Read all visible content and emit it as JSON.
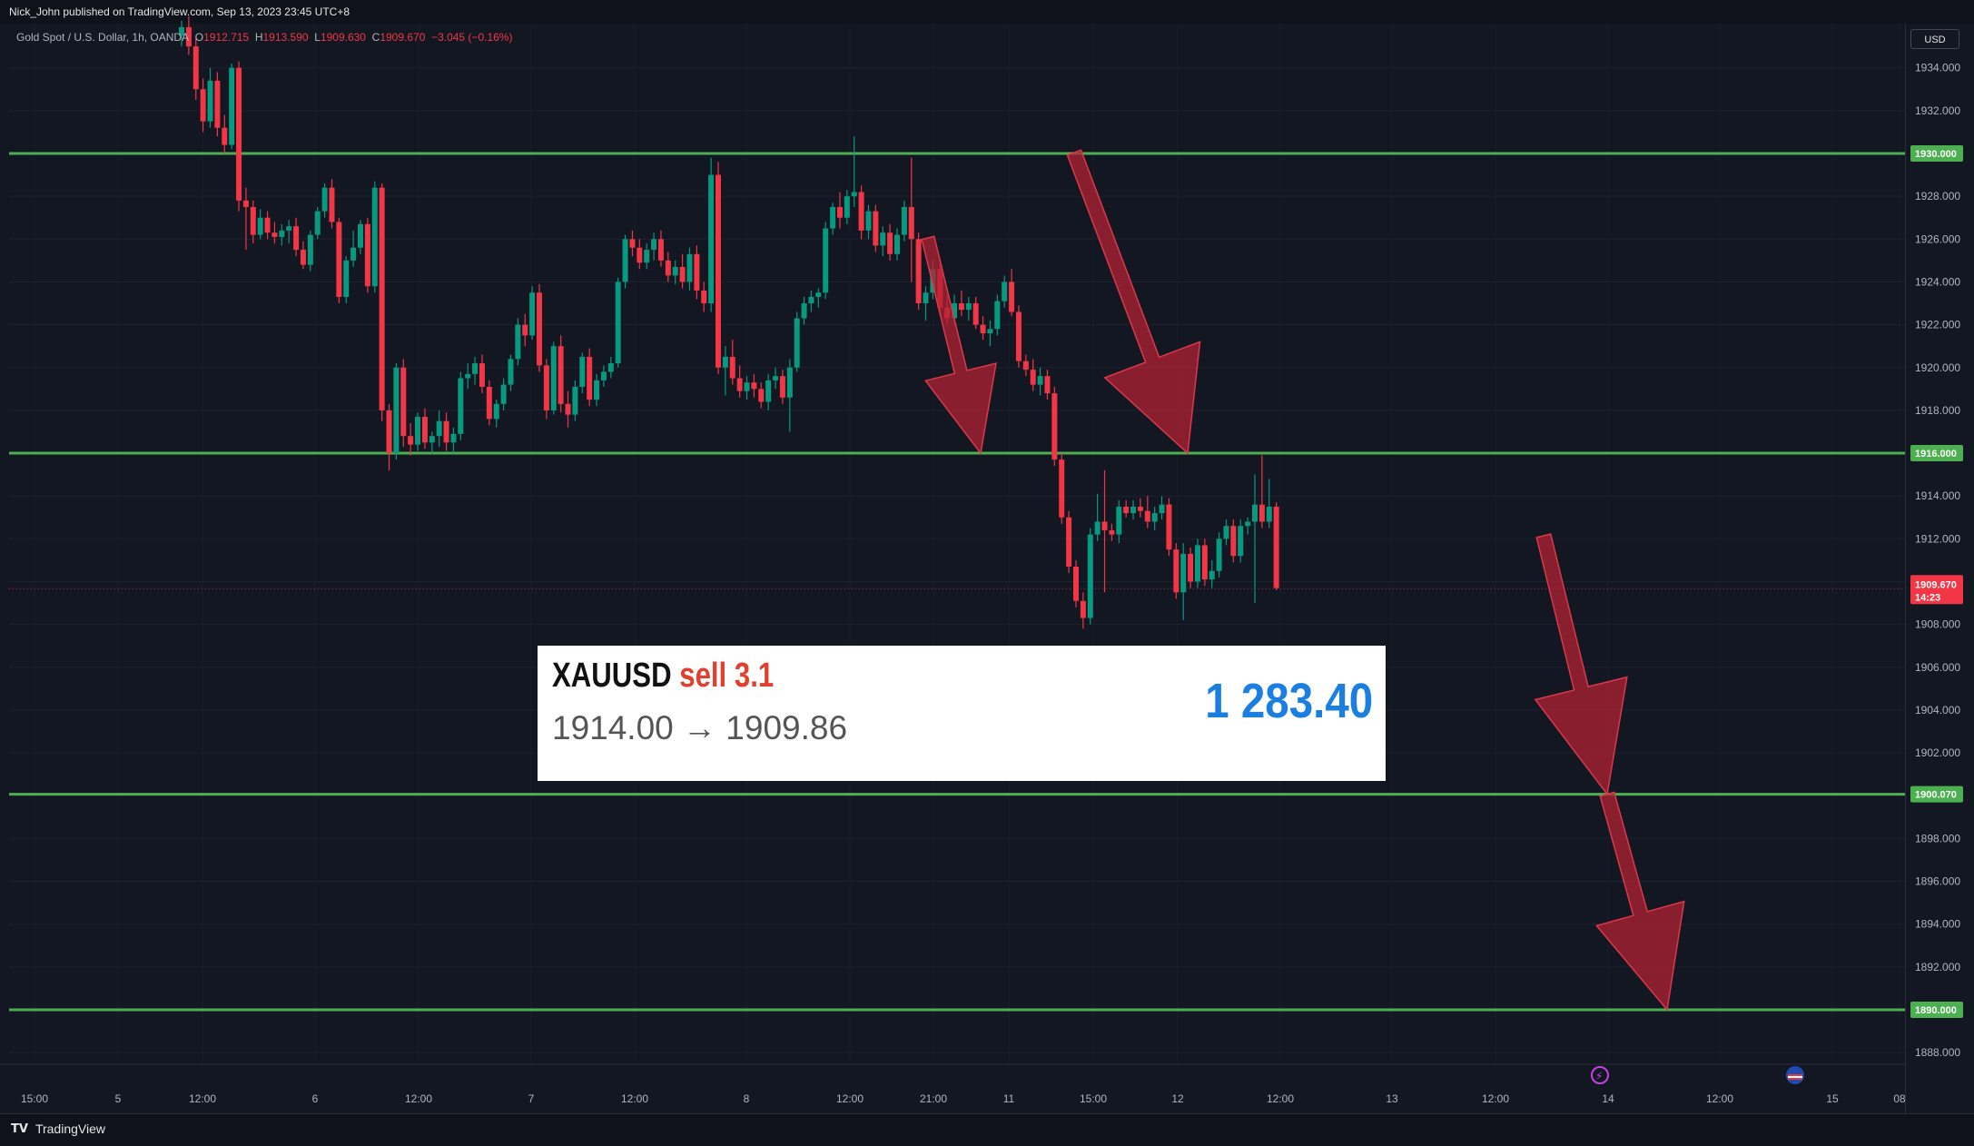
{
  "header": {
    "publisher": "Nick_John published on TradingView.com, Sep 13, 2023 23:45 UTC+8"
  },
  "legend": {
    "symbol": "Gold Spot / U.S. Dollar, 1h, OANDA",
    "open_label": "O",
    "open": "1912.715",
    "high_label": "H",
    "high": "1913.590",
    "low_label": "L",
    "low": "1909.630",
    "close_label": "C",
    "close": "1909.670",
    "change": "−3.045 (−0.16%)"
  },
  "price_axis": {
    "currency": "USD",
    "ticks": [
      "1934.000",
      "1932.000",
      "1930.000",
      "1928.000",
      "1926.000",
      "1924.000",
      "1922.000",
      "1920.000",
      "1918.000",
      "1916.000",
      "1914.000",
      "1912.000",
      "1910.000",
      "1908.000",
      "1906.000",
      "1904.000",
      "1902.000",
      "1900.000",
      "1898.000",
      "1896.000",
      "1894.000",
      "1892.000",
      "1890.000",
      "1888.000"
    ],
    "current_price": "1909.670",
    "countdown": "14:23"
  },
  "time_axis": {
    "labels": [
      "15:00",
      "5",
      "12:00",
      "6",
      "12:00",
      "7",
      "12:00",
      "8",
      "12:00",
      "21:00",
      "11",
      "15:00",
      "12",
      "12:00",
      "13",
      "12:00",
      "14",
      "12:00",
      "15",
      "08"
    ]
  },
  "trade_card": {
    "symbol": "XAUUSD",
    "side": "sell 3.1",
    "prices": "1914.00 → 1909.86",
    "profit": "1 283.40"
  },
  "footer": {
    "brand": "TradingView"
  },
  "colors": {
    "background": "#131722",
    "up": "#089981",
    "down": "#f23645",
    "level_line": "#4caf50",
    "arrow": "#b22234"
  },
  "chart_data": {
    "type": "candlestick",
    "symbol": "Gold Spot / U.S. Dollar",
    "timeframe": "1h",
    "ylim": [
      1887,
      1936
    ],
    "horizontal_levels": [
      {
        "value": 1930.0,
        "label": "1930.000"
      },
      {
        "value": 1916.0,
        "label": "1916.000"
      },
      {
        "value": 1900.07,
        "label": "1900.070"
      },
      {
        "value": 1890.0,
        "label": "1890.000"
      }
    ],
    "arrows": [
      {
        "from": [
          "21:00 Sep 10",
          1926.0
        ],
        "to": [
          "03:00 Sep 11",
          1916.0
        ]
      },
      {
        "from": [
          "14:00 Sep 11",
          1930.0
        ],
        "to": [
          "01:00 Sep 12",
          1916.0
        ]
      },
      {
        "from": [
          "Sep 13 evening",
          1912.5
        ],
        "to": [
          "Sep 14 early",
          1900.07
        ]
      },
      {
        "from": [
          "Sep 14 early",
          1900.07
        ],
        "to": [
          "Sep 14 morning",
          1890.0
        ]
      }
    ],
    "candles": [
      {
        "o": 1935.5,
        "h": 1936.2,
        "l": 1935.0,
        "c": 1935.9
      },
      {
        "o": 1935.9,
        "h": 1936.4,
        "l": 1934.6,
        "c": 1935.0
      },
      {
        "o": 1935.0,
        "h": 1935.4,
        "l": 1932.5,
        "c": 1933.0
      },
      {
        "o": 1933.0,
        "h": 1933.5,
        "l": 1931.0,
        "c": 1931.5
      },
      {
        "o": 1931.5,
        "h": 1934.0,
        "l": 1931.2,
        "c": 1933.4
      },
      {
        "o": 1933.4,
        "h": 1933.8,
        "l": 1930.8,
        "c": 1931.2
      },
      {
        "o": 1931.2,
        "h": 1931.8,
        "l": 1930.0,
        "c": 1930.4
      },
      {
        "o": 1930.4,
        "h": 1934.2,
        "l": 1930.2,
        "c": 1934.0
      },
      {
        "o": 1934.0,
        "h": 1934.3,
        "l": 1927.3,
        "c": 1927.8
      },
      {
        "o": 1927.8,
        "h": 1928.4,
        "l": 1925.5,
        "c": 1927.5
      },
      {
        "o": 1927.5,
        "h": 1927.8,
        "l": 1925.8,
        "c": 1926.2
      },
      {
        "o": 1926.2,
        "h": 1927.4,
        "l": 1926.0,
        "c": 1927.0
      },
      {
        "o": 1927.0,
        "h": 1927.3,
        "l": 1926.0,
        "c": 1926.3
      },
      {
        "o": 1926.3,
        "h": 1926.8,
        "l": 1925.8,
        "c": 1926.1
      },
      {
        "o": 1926.1,
        "h": 1926.7,
        "l": 1925.7,
        "c": 1926.4
      },
      {
        "o": 1926.4,
        "h": 1926.9,
        "l": 1925.8,
        "c": 1926.6
      },
      {
        "o": 1926.6,
        "h": 1927.0,
        "l": 1925.2,
        "c": 1925.5
      },
      {
        "o": 1925.5,
        "h": 1925.9,
        "l": 1924.6,
        "c": 1924.8
      },
      {
        "o": 1924.8,
        "h": 1926.4,
        "l": 1924.5,
        "c": 1926.2
      },
      {
        "o": 1926.2,
        "h": 1927.5,
        "l": 1926.0,
        "c": 1927.3
      },
      {
        "o": 1927.3,
        "h": 1928.6,
        "l": 1927.0,
        "c": 1928.4
      },
      {
        "o": 1928.4,
        "h": 1928.8,
        "l": 1926.5,
        "c": 1926.8
      },
      {
        "o": 1926.8,
        "h": 1927.0,
        "l": 1923.0,
        "c": 1923.3
      },
      {
        "o": 1923.3,
        "h": 1925.2,
        "l": 1923.0,
        "c": 1925.0
      },
      {
        "o": 1925.0,
        "h": 1926.4,
        "l": 1924.7,
        "c": 1925.6
      },
      {
        "o": 1925.6,
        "h": 1926.9,
        "l": 1925.3,
        "c": 1926.7
      },
      {
        "o": 1926.7,
        "h": 1927.0,
        "l": 1923.5,
        "c": 1923.8
      },
      {
        "o": 1923.8,
        "h": 1928.7,
        "l": 1923.5,
        "c": 1928.4
      },
      {
        "o": 1928.4,
        "h": 1928.6,
        "l": 1917.5,
        "c": 1918.0
      },
      {
        "o": 1918.0,
        "h": 1918.3,
        "l": 1915.2,
        "c": 1916.0
      },
      {
        "o": 1916.0,
        "h": 1920.2,
        "l": 1915.7,
        "c": 1920.0
      },
      {
        "o": 1920.0,
        "h": 1920.4,
        "l": 1916.3,
        "c": 1916.8
      },
      {
        "o": 1916.8,
        "h": 1917.4,
        "l": 1915.9,
        "c": 1916.4
      },
      {
        "o": 1916.4,
        "h": 1917.9,
        "l": 1916.1,
        "c": 1917.7
      },
      {
        "o": 1917.7,
        "h": 1918.1,
        "l": 1916.2,
        "c": 1916.5
      },
      {
        "o": 1916.5,
        "h": 1917.0,
        "l": 1916.0,
        "c": 1916.8
      },
      {
        "o": 1916.8,
        "h": 1918.0,
        "l": 1916.3,
        "c": 1917.5
      },
      {
        "o": 1917.5,
        "h": 1917.9,
        "l": 1916.1,
        "c": 1916.5
      },
      {
        "o": 1916.5,
        "h": 1917.2,
        "l": 1916.0,
        "c": 1916.9
      },
      {
        "o": 1916.9,
        "h": 1919.8,
        "l": 1916.6,
        "c": 1919.5
      },
      {
        "o": 1919.5,
        "h": 1920.2,
        "l": 1919.0,
        "c": 1919.7
      },
      {
        "o": 1919.7,
        "h": 1920.5,
        "l": 1919.2,
        "c": 1920.2
      },
      {
        "o": 1920.2,
        "h": 1920.6,
        "l": 1918.8,
        "c": 1919.1
      },
      {
        "o": 1919.1,
        "h": 1919.4,
        "l": 1917.3,
        "c": 1917.6
      },
      {
        "o": 1917.6,
        "h": 1918.5,
        "l": 1917.2,
        "c": 1918.3
      },
      {
        "o": 1918.3,
        "h": 1919.5,
        "l": 1918.0,
        "c": 1919.2
      },
      {
        "o": 1919.2,
        "h": 1920.6,
        "l": 1918.9,
        "c": 1920.4
      },
      {
        "o": 1920.4,
        "h": 1922.3,
        "l": 1920.1,
        "c": 1922.0
      },
      {
        "o": 1922.0,
        "h": 1922.5,
        "l": 1921.0,
        "c": 1921.5
      },
      {
        "o": 1921.5,
        "h": 1923.8,
        "l": 1921.3,
        "c": 1923.5
      },
      {
        "o": 1923.5,
        "h": 1923.9,
        "l": 1919.8,
        "c": 1920.1
      },
      {
        "o": 1920.1,
        "h": 1920.4,
        "l": 1917.6,
        "c": 1918.0
      },
      {
        "o": 1918.0,
        "h": 1921.2,
        "l": 1917.8,
        "c": 1921.0
      },
      {
        "o": 1921.0,
        "h": 1921.5,
        "l": 1917.9,
        "c": 1918.3
      },
      {
        "o": 1918.3,
        "h": 1918.9,
        "l": 1917.2,
        "c": 1917.8
      },
      {
        "o": 1917.8,
        "h": 1919.4,
        "l": 1917.5,
        "c": 1919.1
      },
      {
        "o": 1919.1,
        "h": 1920.7,
        "l": 1918.8,
        "c": 1920.5
      },
      {
        "o": 1920.5,
        "h": 1920.9,
        "l": 1918.2,
        "c": 1918.5
      },
      {
        "o": 1918.5,
        "h": 1919.7,
        "l": 1918.2,
        "c": 1919.4
      },
      {
        "o": 1919.4,
        "h": 1920.1,
        "l": 1919.1,
        "c": 1919.8
      },
      {
        "o": 1919.8,
        "h": 1920.5,
        "l": 1919.5,
        "c": 1920.2
      },
      {
        "o": 1920.2,
        "h": 1924.2,
        "l": 1920.0,
        "c": 1924.0
      },
      {
        "o": 1924.0,
        "h": 1926.2,
        "l": 1923.7,
        "c": 1926.0
      },
      {
        "o": 1926.0,
        "h": 1926.4,
        "l": 1925.2,
        "c": 1925.6
      },
      {
        "o": 1925.6,
        "h": 1926.0,
        "l": 1924.6,
        "c": 1924.9
      },
      {
        "o": 1924.9,
        "h": 1925.8,
        "l": 1924.6,
        "c": 1925.5
      },
      {
        "o": 1925.5,
        "h": 1926.3,
        "l": 1925.0,
        "c": 1926.0
      },
      {
        "o": 1926.0,
        "h": 1926.4,
        "l": 1924.7,
        "c": 1925.0
      },
      {
        "o": 1925.0,
        "h": 1925.4,
        "l": 1924.0,
        "c": 1924.3
      },
      {
        "o": 1924.3,
        "h": 1925.0,
        "l": 1923.9,
        "c": 1924.7
      },
      {
        "o": 1924.7,
        "h": 1925.3,
        "l": 1923.7,
        "c": 1924.0
      },
      {
        "o": 1924.0,
        "h": 1925.6,
        "l": 1923.6,
        "c": 1925.3
      },
      {
        "o": 1925.3,
        "h": 1925.7,
        "l": 1923.2,
        "c": 1923.6
      },
      {
        "o": 1923.6,
        "h": 1924.0,
        "l": 1922.6,
        "c": 1923.0
      },
      {
        "o": 1923.0,
        "h": 1929.8,
        "l": 1922.6,
        "c": 1929.0
      },
      {
        "o": 1929.0,
        "h": 1929.6,
        "l": 1919.7,
        "c": 1920.0
      },
      {
        "o": 1920.0,
        "h": 1921.0,
        "l": 1918.7,
        "c": 1920.5
      },
      {
        "o": 1920.5,
        "h": 1921.3,
        "l": 1919.2,
        "c": 1919.5
      },
      {
        "o": 1919.5,
        "h": 1920.1,
        "l": 1918.6,
        "c": 1918.9
      },
      {
        "o": 1918.9,
        "h": 1919.6,
        "l": 1918.5,
        "c": 1919.3
      },
      {
        "o": 1919.3,
        "h": 1919.7,
        "l": 1918.6,
        "c": 1919.0
      },
      {
        "o": 1919.0,
        "h": 1919.3,
        "l": 1918.1,
        "c": 1918.4
      },
      {
        "o": 1918.4,
        "h": 1919.7,
        "l": 1918.0,
        "c": 1919.4
      },
      {
        "o": 1919.4,
        "h": 1920.0,
        "l": 1919.0,
        "c": 1919.6
      },
      {
        "o": 1919.6,
        "h": 1919.9,
        "l": 1918.3,
        "c": 1918.6
      },
      {
        "o": 1918.6,
        "h": 1920.4,
        "l": 1917.0,
        "c": 1920.0
      },
      {
        "o": 1920.0,
        "h": 1922.6,
        "l": 1919.8,
        "c": 1922.3
      },
      {
        "o": 1922.3,
        "h": 1923.3,
        "l": 1922.0,
        "c": 1923.0
      },
      {
        "o": 1923.0,
        "h": 1923.6,
        "l": 1922.6,
        "c": 1923.3
      },
      {
        "o": 1923.3,
        "h": 1923.7,
        "l": 1922.8,
        "c": 1923.5
      },
      {
        "o": 1923.5,
        "h": 1926.8,
        "l": 1923.2,
        "c": 1926.5
      },
      {
        "o": 1926.5,
        "h": 1927.7,
        "l": 1926.2,
        "c": 1927.5
      },
      {
        "o": 1927.5,
        "h": 1928.2,
        "l": 1926.5,
        "c": 1927.0
      },
      {
        "o": 1927.0,
        "h": 1928.3,
        "l": 1926.7,
        "c": 1928.0
      },
      {
        "o": 1928.0,
        "h": 1930.8,
        "l": 1927.5,
        "c": 1928.2
      },
      {
        "o": 1928.2,
        "h": 1928.5,
        "l": 1926.0,
        "c": 1926.4
      },
      {
        "o": 1926.4,
        "h": 1927.6,
        "l": 1926.0,
        "c": 1927.3
      },
      {
        "o": 1927.3,
        "h": 1927.6,
        "l": 1925.4,
        "c": 1925.7
      },
      {
        "o": 1925.7,
        "h": 1926.6,
        "l": 1925.2,
        "c": 1926.3
      },
      {
        "o": 1926.3,
        "h": 1926.7,
        "l": 1925.0,
        "c": 1925.3
      },
      {
        "o": 1925.3,
        "h": 1926.5,
        "l": 1925.0,
        "c": 1926.2
      },
      {
        "o": 1926.2,
        "h": 1927.8,
        "l": 1925.9,
        "c": 1927.5
      },
      {
        "o": 1927.5,
        "h": 1929.8,
        "l": 1924.0,
        "c": 1926.0
      },
      {
        "o": 1926.0,
        "h": 1926.3,
        "l": 1922.7,
        "c": 1923.0
      },
      {
        "o": 1923.0,
        "h": 1923.8,
        "l": 1922.2,
        "c": 1923.5
      },
      {
        "o": 1923.5,
        "h": 1925.0,
        "l": 1923.2,
        "c": 1924.6
      },
      {
        "o": 1924.6,
        "h": 1924.9,
        "l": 1922.5,
        "c": 1922.8
      },
      {
        "o": 1922.8,
        "h": 1923.4,
        "l": 1922.0,
        "c": 1922.3
      },
      {
        "o": 1922.3,
        "h": 1923.4,
        "l": 1922.0,
        "c": 1923.0
      },
      {
        "o": 1923.0,
        "h": 1923.6,
        "l": 1922.4,
        "c": 1922.7
      },
      {
        "o": 1922.7,
        "h": 1923.3,
        "l": 1922.2,
        "c": 1923.0
      },
      {
        "o": 1923.0,
        "h": 1923.3,
        "l": 1921.8,
        "c": 1922.0
      },
      {
        "o": 1922.0,
        "h": 1922.4,
        "l": 1921.3,
        "c": 1921.6
      },
      {
        "o": 1921.6,
        "h": 1922.2,
        "l": 1921.0,
        "c": 1921.8
      },
      {
        "o": 1921.8,
        "h": 1923.4,
        "l": 1921.5,
        "c": 1923.1
      },
      {
        "o": 1923.1,
        "h": 1924.3,
        "l": 1922.8,
        "c": 1924.0
      },
      {
        "o": 1924.0,
        "h": 1924.6,
        "l": 1922.4,
        "c": 1922.6
      },
      {
        "o": 1922.6,
        "h": 1922.9,
        "l": 1920.0,
        "c": 1920.3
      },
      {
        "o": 1920.3,
        "h": 1920.6,
        "l": 1919.6,
        "c": 1919.9
      },
      {
        "o": 1919.9,
        "h": 1920.4,
        "l": 1918.9,
        "c": 1919.2
      },
      {
        "o": 1919.2,
        "h": 1920.0,
        "l": 1918.7,
        "c": 1919.6
      },
      {
        "o": 1919.6,
        "h": 1919.9,
        "l": 1918.5,
        "c": 1918.8
      },
      {
        "o": 1918.8,
        "h": 1919.1,
        "l": 1915.4,
        "c": 1915.7
      },
      {
        "o": 1915.7,
        "h": 1916.0,
        "l": 1912.7,
        "c": 1913.0
      },
      {
        "o": 1913.0,
        "h": 1913.3,
        "l": 1910.4,
        "c": 1910.7
      },
      {
        "o": 1910.7,
        "h": 1911.0,
        "l": 1908.8,
        "c": 1909.1
      },
      {
        "o": 1909.1,
        "h": 1909.5,
        "l": 1907.8,
        "c": 1908.3
      },
      {
        "o": 1908.3,
        "h": 1912.5,
        "l": 1908.0,
        "c": 1912.2
      },
      {
        "o": 1912.2,
        "h": 1914.1,
        "l": 1911.9,
        "c": 1912.8
      },
      {
        "o": 1912.8,
        "h": 1915.2,
        "l": 1909.5,
        "c": 1912.4
      },
      {
        "o": 1912.4,
        "h": 1912.7,
        "l": 1911.9,
        "c": 1912.2
      },
      {
        "o": 1912.2,
        "h": 1913.8,
        "l": 1911.8,
        "c": 1913.5
      },
      {
        "o": 1913.5,
        "h": 1913.8,
        "l": 1913.0,
        "c": 1913.2
      },
      {
        "o": 1913.2,
        "h": 1913.8,
        "l": 1912.9,
        "c": 1913.5
      },
      {
        "o": 1913.5,
        "h": 1913.9,
        "l": 1913.0,
        "c": 1913.3
      },
      {
        "o": 1913.3,
        "h": 1914.0,
        "l": 1912.5,
        "c": 1912.8
      },
      {
        "o": 1912.8,
        "h": 1913.5,
        "l": 1912.4,
        "c": 1913.2
      },
      {
        "o": 1913.2,
        "h": 1914.0,
        "l": 1912.9,
        "c": 1913.6
      },
      {
        "o": 1913.6,
        "h": 1913.9,
        "l": 1911.2,
        "c": 1911.5
      },
      {
        "o": 1911.5,
        "h": 1911.8,
        "l": 1909.2,
        "c": 1909.5
      },
      {
        "o": 1909.5,
        "h": 1911.8,
        "l": 1908.2,
        "c": 1911.3
      },
      {
        "o": 1911.3,
        "h": 1911.6,
        "l": 1909.7,
        "c": 1910.0
      },
      {
        "o": 1910.0,
        "h": 1912.0,
        "l": 1909.7,
        "c": 1911.7
      },
      {
        "o": 1911.7,
        "h": 1912.0,
        "l": 1909.8,
        "c": 1910.1
      },
      {
        "o": 1910.1,
        "h": 1911.0,
        "l": 1909.7,
        "c": 1910.5
      },
      {
        "o": 1910.5,
        "h": 1912.3,
        "l": 1910.2,
        "c": 1912.0
      },
      {
        "o": 1912.0,
        "h": 1912.9,
        "l": 1911.7,
        "c": 1912.6
      },
      {
        "o": 1912.6,
        "h": 1912.9,
        "l": 1910.9,
        "c": 1911.2
      },
      {
        "o": 1911.2,
        "h": 1912.9,
        "l": 1910.9,
        "c": 1912.6
      },
      {
        "o": 1912.6,
        "h": 1913.0,
        "l": 1912.2,
        "c": 1912.8
      },
      {
        "o": 1912.8,
        "h": 1915.0,
        "l": 1909.0,
        "c": 1913.6
      },
      {
        "o": 1913.6,
        "h": 1915.9,
        "l": 1912.5,
        "c": 1912.8
      },
      {
        "o": 1912.8,
        "h": 1914.8,
        "l": 1912.5,
        "c": 1913.5
      },
      {
        "o": 1913.5,
        "h": 1913.7,
        "l": 1909.6,
        "c": 1909.7
      }
    ]
  }
}
